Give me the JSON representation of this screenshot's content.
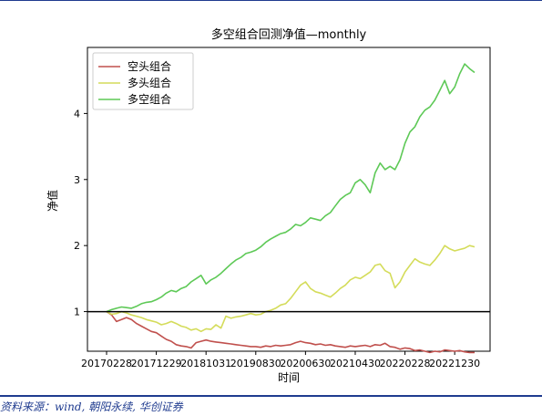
{
  "source": "资料来源：wind, 朝阳永续, 华创证券",
  "chart_data": {
    "type": "line",
    "title": "多空组合回测净值—monthly",
    "xlabel": "时间",
    "ylabel": "净值",
    "x_tick_labels": [
      "20170228",
      "20171229",
      "20181031",
      "20190830",
      "20200630",
      "20210430",
      "20220228",
      "20221230"
    ],
    "x_tick_index": [
      0,
      10,
      20,
      30,
      40,
      50,
      60,
      70
    ],
    "yticks": [
      1,
      2,
      3,
      4
    ],
    "ylim": [
      0.4,
      5.0
    ],
    "baseline": 1,
    "grid": false,
    "legend_position": "upper-left",
    "series": [
      {
        "name": "空头组合",
        "color": "#c0504d",
        "values": [
          1.0,
          0.95,
          0.85,
          0.88,
          0.91,
          0.88,
          0.82,
          0.78,
          0.74,
          0.7,
          0.68,
          0.63,
          0.58,
          0.55,
          0.5,
          0.48,
          0.47,
          0.45,
          0.53,
          0.55,
          0.57,
          0.55,
          0.54,
          0.53,
          0.52,
          0.51,
          0.5,
          0.49,
          0.48,
          0.47,
          0.47,
          0.46,
          0.48,
          0.47,
          0.49,
          0.48,
          0.49,
          0.5,
          0.53,
          0.55,
          0.53,
          0.52,
          0.5,
          0.51,
          0.49,
          0.5,
          0.48,
          0.47,
          0.46,
          0.48,
          0.47,
          0.48,
          0.49,
          0.47,
          0.5,
          0.49,
          0.52,
          0.47,
          0.46,
          0.43,
          0.45,
          0.44,
          0.41,
          0.42,
          0.4,
          0.38,
          0.4,
          0.39,
          0.42,
          0.41,
          0.4,
          0.41,
          0.39,
          0.38,
          0.38
        ]
      },
      {
        "name": "多头组合",
        "color": "#d4dc5a",
        "values": [
          1.0,
          0.96,
          0.97,
          1.0,
          0.98,
          0.95,
          0.93,
          0.91,
          0.88,
          0.86,
          0.84,
          0.8,
          0.82,
          0.85,
          0.82,
          0.78,
          0.76,
          0.72,
          0.74,
          0.7,
          0.74,
          0.73,
          0.8,
          0.75,
          0.93,
          0.9,
          0.92,
          0.93,
          0.95,
          0.97,
          0.95,
          0.96,
          1.0,
          1.02,
          1.05,
          1.1,
          1.12,
          1.2,
          1.3,
          1.4,
          1.45,
          1.35,
          1.3,
          1.28,
          1.25,
          1.22,
          1.28,
          1.35,
          1.4,
          1.48,
          1.52,
          1.5,
          1.55,
          1.6,
          1.7,
          1.72,
          1.62,
          1.58,
          1.36,
          1.45,
          1.6,
          1.7,
          1.8,
          1.75,
          1.72,
          1.7,
          1.78,
          1.88,
          2.0,
          1.95,
          1.92,
          1.94,
          1.96,
          2.0,
          1.98
        ]
      },
      {
        "name": "多空组合",
        "color": "#5ec957",
        "values": [
          1.0,
          1.03,
          1.05,
          1.07,
          1.06,
          1.05,
          1.08,
          1.12,
          1.14,
          1.15,
          1.18,
          1.22,
          1.28,
          1.32,
          1.3,
          1.35,
          1.38,
          1.45,
          1.5,
          1.55,
          1.42,
          1.48,
          1.52,
          1.58,
          1.65,
          1.72,
          1.78,
          1.82,
          1.88,
          1.9,
          1.93,
          1.98,
          2.05,
          2.1,
          2.14,
          2.18,
          2.2,
          2.25,
          2.32,
          2.3,
          2.35,
          2.42,
          2.4,
          2.38,
          2.45,
          2.5,
          2.6,
          2.7,
          2.76,
          2.8,
          2.95,
          3.0,
          2.92,
          2.8,
          3.1,
          3.25,
          3.15,
          3.2,
          3.15,
          3.3,
          3.55,
          3.72,
          3.8,
          3.95,
          4.05,
          4.1,
          4.2,
          4.35,
          4.5,
          4.3,
          4.4,
          4.6,
          4.75,
          4.68,
          4.62
        ]
      }
    ]
  }
}
